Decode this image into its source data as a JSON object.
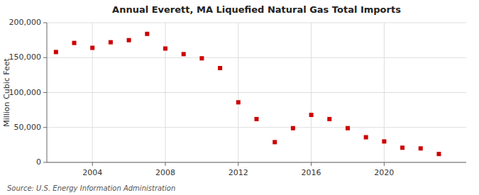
{
  "chart_data": {
    "type": "scatter",
    "title": "Annual Everett, MA Liquefied Natural Gas Total Imports",
    "ylabel": "Million Cubic Feet",
    "annotations": [
      "Source: U.S. Energy Information Administration"
    ],
    "x": [
      2002,
      2003,
      2004,
      2005,
      2006,
      2007,
      2008,
      2009,
      2010,
      2011,
      2012,
      2013,
      2014,
      2015,
      2016,
      2017,
      2018,
      2019,
      2020,
      2021,
      2022,
      2023
    ],
    "values": [
      158000,
      171000,
      164000,
      172000,
      175000,
      184000,
      163000,
      155000,
      149000,
      135000,
      86000,
      62000,
      29000,
      49000,
      68000,
      62000,
      49000,
      36000,
      30000,
      21000,
      20000,
      12000
    ],
    "color": "#cc0000",
    "marker": "square",
    "grid": true,
    "xlim": [
      2001.5,
      2024.5
    ],
    "xticks": [
      2004,
      2008,
      2012,
      2016,
      2020
    ],
    "ylim": [
      0,
      200000
    ],
    "yticks": [
      0,
      {
        "value": 50000,
        "label": "50,000"
      },
      {
        "value": 100000,
        "label": "100,000"
      },
      {
        "value": 150000,
        "label": "150,000"
      },
      {
        "value": 200000,
        "label": "200,000"
      }
    ]
  }
}
